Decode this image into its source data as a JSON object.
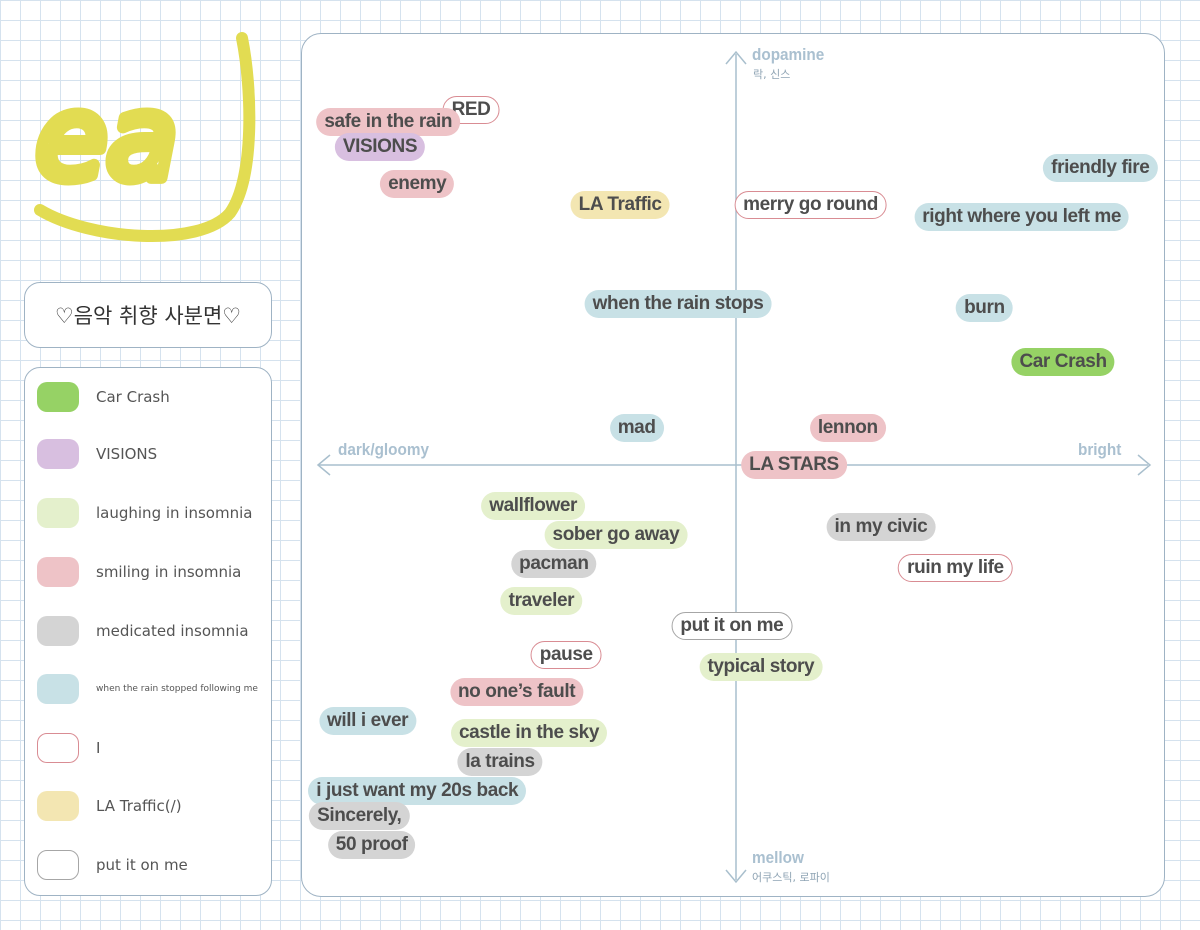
{
  "logo_text": "ea",
  "title": "♡음악 취향 사분면♡",
  "colors": {
    "green": "#96d265",
    "purple": "#d8bfe0",
    "lightgreen": "#e4f0cc",
    "pink": "#eec3c7",
    "gray": "#d4d4d4",
    "blue": "#c8e1e6",
    "yellow": "#f3e6b2",
    "outline_red": "#d98c93",
    "outline_gray": "#a6a6a6",
    "logo_yellow": "#e2dc52"
  },
  "legend": [
    {
      "label": "Car Crash",
      "style": "green"
    },
    {
      "label": "VISIONS",
      "style": "purple"
    },
    {
      "label": "laughing in insomnia",
      "style": "lightgreen"
    },
    {
      "label": "smiling in insomnia",
      "style": "pink"
    },
    {
      "label": "medicated insomnia",
      "style": "gray"
    },
    {
      "label": "when the rain stopped following me",
      "style": "blue"
    },
    {
      "label": "I",
      "style": "outline-red"
    },
    {
      "label": "LA Traffic(/)",
      "style": "yellow"
    },
    {
      "label": "put it on me",
      "style": "outline-gray"
    }
  ],
  "axes": {
    "top": "dopamine",
    "top_sub": "락, 신스",
    "bottom": "mellow",
    "bottom_sub": "어쿠스틱, 로파이",
    "left": "dark/gloomy",
    "right": "bright"
  },
  "chart_data": {
    "type": "scatter",
    "x_axis": [
      "dark/gloomy",
      "bright"
    ],
    "y_axis": [
      "mellow",
      "dopamine"
    ],
    "xlim": [
      -1,
      1
    ],
    "ylim": [
      -1,
      1
    ],
    "points": [
      {
        "label": "RED",
        "album": "I",
        "x": -0.64,
        "y": 0.86
      },
      {
        "label": "safe in the rain",
        "album": "smiling in insomnia",
        "x": -0.84,
        "y": 0.83
      },
      {
        "label": "VISIONS",
        "album": "VISIONS",
        "x": -0.86,
        "y": 0.77
      },
      {
        "label": "enemy",
        "album": "smiling in insomnia",
        "x": -0.77,
        "y": 0.68
      },
      {
        "label": "LA Traffic",
        "album": "LA Traffic(/)",
        "x": -0.28,
        "y": 0.63
      },
      {
        "label": "merry go round",
        "album": "I",
        "x": 0.18,
        "y": 0.63
      },
      {
        "label": "friendly fire",
        "album": "when the rain stopped following me",
        "x": 0.88,
        "y": 0.72
      },
      {
        "label": "right where you left me",
        "album": "when the rain stopped following me",
        "x": 0.69,
        "y": 0.6
      },
      {
        "label": "when the rain stops",
        "album": "when the rain stopped following me",
        "x": -0.14,
        "y": 0.39
      },
      {
        "label": "burn",
        "album": "when the rain stopped following me",
        "x": 0.6,
        "y": 0.38
      },
      {
        "label": "Car Crash",
        "album": "Car Crash",
        "x": 0.79,
        "y": 0.25
      },
      {
        "label": "mad",
        "album": "when the rain stopped following me",
        "x": -0.24,
        "y": 0.09
      },
      {
        "label": "lennon",
        "album": "smiling in insomnia",
        "x": 0.27,
        "y": 0.09
      },
      {
        "label": "LA STARS",
        "album": "smiling in insomnia",
        "x": 0.14,
        "y": 0.0
      },
      {
        "label": "wallflower",
        "album": "laughing in insomnia",
        "x": -0.49,
        "y": -0.1
      },
      {
        "label": "sober go away",
        "album": "laughing in insomnia",
        "x": -0.29,
        "y": -0.17
      },
      {
        "label": "pacman",
        "album": "medicated insomnia",
        "x": -0.44,
        "y": -0.24
      },
      {
        "label": "in my civic",
        "album": "medicated insomnia",
        "x": 0.35,
        "y": -0.15
      },
      {
        "label": "ruin my life",
        "album": "I",
        "x": 0.53,
        "y": -0.25
      },
      {
        "label": "traveler",
        "album": "laughing in insomnia",
        "x": -0.47,
        "y": -0.33
      },
      {
        "label": "put it on me",
        "album": "put it on me",
        "x": -0.01,
        "y": -0.39
      },
      {
        "label": "pause",
        "album": "I",
        "x": -0.41,
        "y": -0.46
      },
      {
        "label": "typical story",
        "album": "laughing in insomnia",
        "x": 0.06,
        "y": -0.49
      },
      {
        "label": "no one’s fault",
        "album": "smiling in insomnia",
        "x": -0.53,
        "y": -0.55
      },
      {
        "label": "will i ever",
        "album": "when the rain stopped following me",
        "x": -0.89,
        "y": -0.62
      },
      {
        "label": "castle in the sky",
        "album": "laughing in insomnia",
        "x": -0.5,
        "y": -0.65
      },
      {
        "label": "la trains",
        "album": "medicated insomnia",
        "x": -0.57,
        "y": -0.72
      },
      {
        "label": "i just want my 20s back",
        "album": "when the rain stopped following me",
        "x": -0.77,
        "y": -0.79
      },
      {
        "label": "Sincerely,",
        "album": "medicated insomnia",
        "x": -0.91,
        "y": -0.85
      },
      {
        "label": "50 proof",
        "album": "medicated insomnia",
        "x": -0.88,
        "y": -0.92
      }
    ]
  }
}
